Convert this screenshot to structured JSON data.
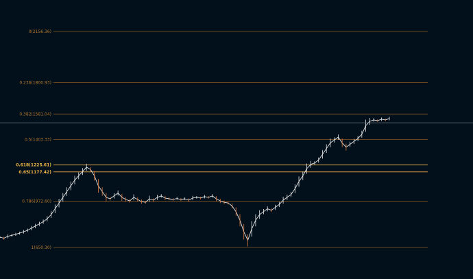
{
  "chart_data": {
    "type": "line",
    "title": "",
    "xlabel": "",
    "ylabel": "",
    "ylim": [
      650.3,
      2156.36
    ],
    "colors": {
      "background": "#01101b",
      "fib_line": "#8a5a22",
      "fib_line_highlight": "#d9a04a",
      "fib_label": "#b9792c",
      "fib_label_highlight": "#f0b54a",
      "price_up": "#e8e8e8",
      "price_down": "#e0783c",
      "cursor_line": "#6f7a82"
    },
    "fib_levels": [
      {
        "label": "0(2156.36)",
        "ratio": 0,
        "price": 2156.36,
        "highlight": false
      },
      {
        "label": "0.236(1800.93)",
        "ratio": 0.236,
        "price": 1800.93,
        "highlight": false
      },
      {
        "label": "0.382(1581.04)",
        "ratio": 0.382,
        "price": 1581.04,
        "highlight": false
      },
      {
        "label": "0.5(1403.33)",
        "ratio": 0.5,
        "price": 1403.33,
        "highlight": false
      },
      {
        "label": "0.618(1225.61)",
        "ratio": 0.618,
        "price": 1225.61,
        "highlight": true
      },
      {
        "label": "0.65(1177.42)",
        "ratio": 0.65,
        "price": 1177.42,
        "highlight": true
      },
      {
        "label": "0.786(972.60)",
        "ratio": 0.786,
        "price": 972.6,
        "highlight": false
      },
      {
        "label": "1(650.30)",
        "ratio": 1,
        "price": 650.3,
        "highlight": false
      }
    ],
    "crosshair_price": 1520,
    "series": [
      {
        "values": [
          722,
          715,
          728,
          735,
          742,
          750,
          760,
          770,
          785,
          800,
          815,
          830,
          850,
          880,
          920,
          960,
          1000,
          1040,
          1080,
          1120,
          1150,
          1180,
          1210,
          1195,
          1150,
          1080,
          1040,
          1000,
          990,
          1010,
          1030,
          1000,
          985,
          975,
          1000,
          985,
          970,
          965,
          990,
          980,
          1000,
          1010,
          995,
          990,
          985,
          992,
          985,
          990,
          980,
          995,
          1000,
          995,
          1005,
          1000,
          1010,
          990,
          975,
          965,
          960,
          940,
          900,
          840,
          760,
          700,
          780,
          840,
          880,
          900,
          920,
          910,
          930,
          950,
          980,
          1000,
          1020,
          1060,
          1110,
          1150,
          1200,
          1230,
          1240,
          1260,
          1300,
          1340,
          1380,
          1400,
          1420,
          1380,
          1350,
          1370,
          1390,
          1410,
          1440,
          1500,
          1530,
          1540,
          1535,
          1545,
          1540,
          1550
        ]
      }
    ]
  }
}
